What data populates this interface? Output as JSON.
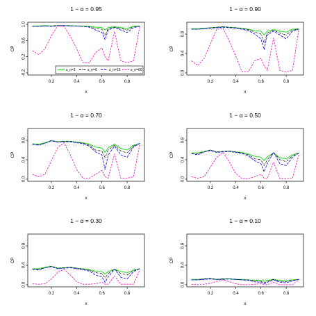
{
  "chart_data": [
    {
      "type": "line",
      "title": "1 − α = 0.95",
      "xlabel": "x",
      "ylabel": "CP",
      "xlim": [
        0.05,
        0.9
      ],
      "ylim": [
        -0.2,
        1.0
      ],
      "xticks": [
        "0.2",
        "0.4",
        "0.6",
        "0.8"
      ],
      "yticks": [
        "-0.2",
        "0.2",
        "0.6",
        "1.0"
      ],
      "reference_line": 0.95,
      "legend": {
        "position": "bottom-right",
        "entries": [
          "s_n=1",
          "s_n=6",
          "s_n=15",
          "s_n=60"
        ]
      },
      "x": [
        0.05,
        0.1,
        0.15,
        0.2,
        0.25,
        0.3,
        0.35,
        0.4,
        0.45,
        0.5,
        0.55,
        0.6,
        0.625,
        0.65,
        0.7,
        0.75,
        0.8,
        0.85,
        0.9
      ],
      "series": [
        {
          "name": "s_n=1",
          "values": [
            0.96,
            0.96,
            0.97,
            0.96,
            0.97,
            0.97,
            0.97,
            0.96,
            0.96,
            0.95,
            0.93,
            0.92,
            0.86,
            0.92,
            0.94,
            0.92,
            0.9,
            0.95,
            0.96
          ]
        },
        {
          "name": "s_n=6",
          "values": [
            0.95,
            0.95,
            0.96,
            0.96,
            0.97,
            0.97,
            0.96,
            0.96,
            0.95,
            0.94,
            0.9,
            0.88,
            0.72,
            0.9,
            0.93,
            0.9,
            0.86,
            0.94,
            0.95
          ]
        },
        {
          "name": "s_n=15",
          "values": [
            0.95,
            0.95,
            0.96,
            0.95,
            0.96,
            0.97,
            0.96,
            0.96,
            0.95,
            0.93,
            0.86,
            0.8,
            0.62,
            0.86,
            0.92,
            0.86,
            0.8,
            0.92,
            0.95
          ]
        },
        {
          "name": "s_n=60",
          "values": [
            0.35,
            0.25,
            0.4,
            0.72,
            0.96,
            0.95,
            0.7,
            0.4,
            0.05,
            0.05,
            0.3,
            0.42,
            0.2,
            0.1,
            0.82,
            0.1,
            0.05,
            0.1,
            0.95
          ]
        }
      ]
    },
    {
      "type": "line",
      "title": "1 − α = 0.90",
      "xlabel": "x",
      "ylabel": "CP",
      "xlim": [
        0.05,
        0.9
      ],
      "ylim": [
        0.0,
        1.0
      ],
      "xticks": [
        "0.2",
        "0.4",
        "0.6",
        "0.8"
      ],
      "yticks": [
        "0.0",
        "0.4",
        "0.8"
      ],
      "reference_line": 0.9,
      "x": [
        0.05,
        0.1,
        0.15,
        0.2,
        0.25,
        0.3,
        0.35,
        0.4,
        0.45,
        0.5,
        0.55,
        0.6,
        0.625,
        0.65,
        0.7,
        0.75,
        0.8,
        0.85,
        0.9
      ],
      "series": [
        {
          "name": "s_n=1",
          "values": [
            0.91,
            0.91,
            0.92,
            0.93,
            0.94,
            0.95,
            0.94,
            0.93,
            0.92,
            0.9,
            0.87,
            0.86,
            0.78,
            0.86,
            0.89,
            0.86,
            0.84,
            0.9,
            0.91
          ]
        },
        {
          "name": "s_n=6",
          "values": [
            0.9,
            0.9,
            0.91,
            0.93,
            0.94,
            0.95,
            0.94,
            0.93,
            0.91,
            0.89,
            0.84,
            0.8,
            0.62,
            0.82,
            0.88,
            0.82,
            0.78,
            0.88,
            0.9
          ]
        },
        {
          "name": "s_n=15",
          "values": [
            0.9,
            0.9,
            0.91,
            0.92,
            0.93,
            0.94,
            0.93,
            0.92,
            0.9,
            0.87,
            0.8,
            0.7,
            0.48,
            0.78,
            0.86,
            0.78,
            0.7,
            0.86,
            0.9
          ]
        },
        {
          "name": "s_n=60",
          "values": [
            0.25,
            0.15,
            0.3,
            0.6,
            0.9,
            0.92,
            0.65,
            0.35,
            0.02,
            0.02,
            0.25,
            0.3,
            0.15,
            0.05,
            0.72,
            0.05,
            0.02,
            0.05,
            0.9
          ]
        }
      ]
    },
    {
      "type": "line",
      "title": "1 − α = 0.70",
      "xlabel": "x",
      "ylabel": "CP",
      "xlim": [
        0.05,
        0.9
      ],
      "ylim": [
        0.0,
        1.0
      ],
      "xticks": [
        "0.2",
        "0.4",
        "0.6",
        "0.8"
      ],
      "yticks": [
        "0.0",
        "0.4",
        "0.8"
      ],
      "reference_line": 0.7,
      "x": [
        0.05,
        0.1,
        0.15,
        0.2,
        0.25,
        0.3,
        0.35,
        0.4,
        0.45,
        0.5,
        0.55,
        0.6,
        0.625,
        0.65,
        0.7,
        0.75,
        0.8,
        0.85,
        0.9
      ],
      "series": [
        {
          "name": "s_n=1",
          "values": [
            0.73,
            0.72,
            0.75,
            0.79,
            0.77,
            0.78,
            0.78,
            0.76,
            0.75,
            0.72,
            0.66,
            0.64,
            0.55,
            0.65,
            0.72,
            0.63,
            0.6,
            0.7,
            0.73
          ]
        },
        {
          "name": "s_n=6",
          "values": [
            0.72,
            0.71,
            0.74,
            0.8,
            0.77,
            0.78,
            0.78,
            0.76,
            0.74,
            0.7,
            0.6,
            0.58,
            0.44,
            0.6,
            0.7,
            0.58,
            0.54,
            0.68,
            0.74
          ]
        },
        {
          "name": "s_n=15",
          "values": [
            0.72,
            0.7,
            0.74,
            0.79,
            0.76,
            0.77,
            0.77,
            0.75,
            0.73,
            0.68,
            0.56,
            0.5,
            0.2,
            0.5,
            0.68,
            0.5,
            0.45,
            0.66,
            0.74
          ]
        },
        {
          "name": "s_n=60",
          "values": [
            0.1,
            0.05,
            0.1,
            0.38,
            0.65,
            0.75,
            0.5,
            0.2,
            0.02,
            0.02,
            0.1,
            0.18,
            0.05,
            0.02,
            0.52,
            0.02,
            0.02,
            0.05,
            0.72
          ]
        }
      ]
    },
    {
      "type": "line",
      "title": "1 − α = 0.50",
      "xlabel": "x",
      "ylabel": "CP",
      "xlim": [
        0.05,
        0.9
      ],
      "ylim": [
        0.0,
        1.0
      ],
      "xticks": [
        "0.2",
        "0.4",
        "0.6",
        "0.8"
      ],
      "yticks": [
        "0.0",
        "0.4",
        "0.8"
      ],
      "reference_line": 0.5,
      "x": [
        0.05,
        0.1,
        0.15,
        0.2,
        0.25,
        0.3,
        0.35,
        0.4,
        0.45,
        0.5,
        0.55,
        0.6,
        0.625,
        0.65,
        0.7,
        0.75,
        0.8,
        0.85,
        0.9
      ],
      "series": [
        {
          "name": "s_n=1",
          "values": [
            0.54,
            0.54,
            0.57,
            0.6,
            0.56,
            0.57,
            0.58,
            0.56,
            0.55,
            0.52,
            0.47,
            0.45,
            0.38,
            0.46,
            0.54,
            0.44,
            0.42,
            0.5,
            0.54
          ]
        },
        {
          "name": "s_n=6",
          "values": [
            0.53,
            0.53,
            0.56,
            0.6,
            0.56,
            0.57,
            0.58,
            0.56,
            0.54,
            0.5,
            0.42,
            0.4,
            0.28,
            0.4,
            0.55,
            0.4,
            0.36,
            0.48,
            0.54
          ]
        },
        {
          "name": "s_n=15",
          "values": [
            0.53,
            0.5,
            0.56,
            0.59,
            0.55,
            0.56,
            0.57,
            0.55,
            0.53,
            0.48,
            0.38,
            0.32,
            0.15,
            0.32,
            0.55,
            0.32,
            0.28,
            0.45,
            0.54
          ]
        },
        {
          "name": "s_n=60",
          "values": [
            0.05,
            0.02,
            0.05,
            0.25,
            0.45,
            0.55,
            0.35,
            0.12,
            0.01,
            0.01,
            0.05,
            0.1,
            0.02,
            0.01,
            0.35,
            0.01,
            0.01,
            0.02,
            0.5
          ]
        }
      ]
    },
    {
      "type": "line",
      "title": "1 − α = 0.30",
      "xlabel": "x",
      "ylabel": "CP",
      "xlim": [
        0.05,
        0.9
      ],
      "ylim": [
        0.0,
        1.0
      ],
      "xticks": [
        "0.2",
        "0.4",
        "0.6",
        "0.8"
      ],
      "yticks": [
        "0.0",
        "0.4",
        "0.8"
      ],
      "reference_line": 0.3,
      "x": [
        0.05,
        0.1,
        0.15,
        0.2,
        0.25,
        0.3,
        0.35,
        0.4,
        0.45,
        0.5,
        0.55,
        0.6,
        0.625,
        0.65,
        0.7,
        0.75,
        0.8,
        0.85,
        0.9
      ],
      "series": [
        {
          "name": "s_n=1",
          "values": [
            0.33,
            0.33,
            0.36,
            0.38,
            0.34,
            0.35,
            0.36,
            0.34,
            0.33,
            0.31,
            0.28,
            0.27,
            0.22,
            0.27,
            0.32,
            0.27,
            0.25,
            0.3,
            0.33
          ]
        },
        {
          "name": "s_n=6",
          "values": [
            0.32,
            0.32,
            0.35,
            0.38,
            0.34,
            0.35,
            0.36,
            0.34,
            0.32,
            0.3,
            0.25,
            0.23,
            0.14,
            0.23,
            0.32,
            0.23,
            0.2,
            0.29,
            0.33
          ]
        },
        {
          "name": "s_n=15",
          "values": [
            0.32,
            0.3,
            0.35,
            0.37,
            0.33,
            0.34,
            0.35,
            0.33,
            0.31,
            0.28,
            0.2,
            0.16,
            0.05,
            0.16,
            0.32,
            0.15,
            0.12,
            0.27,
            0.33
          ]
        },
        {
          "name": "s_n=60",
          "values": [
            0.02,
            0.01,
            0.02,
            0.12,
            0.25,
            0.32,
            0.2,
            0.06,
            0.01,
            0.01,
            0.02,
            0.05,
            0.01,
            0.01,
            0.18,
            0.01,
            0.01,
            0.01,
            0.3
          ]
        }
      ]
    },
    {
      "type": "line",
      "title": "1 − α = 0.10",
      "xlabel": "x",
      "ylabel": "CP",
      "xlim": [
        0.05,
        0.9
      ],
      "ylim": [
        0.0,
        1.0
      ],
      "xticks": [
        "0.2",
        "0.4",
        "0.6",
        "0.8"
      ],
      "yticks": [
        "0.0",
        "0.4",
        "0.8"
      ],
      "reference_line": 0.1,
      "x": [
        0.05,
        0.1,
        0.15,
        0.2,
        0.25,
        0.3,
        0.35,
        0.4,
        0.45,
        0.5,
        0.55,
        0.6,
        0.625,
        0.65,
        0.7,
        0.75,
        0.8,
        0.85,
        0.9
      ],
      "series": [
        {
          "name": "s_n=1",
          "values": [
            0.11,
            0.11,
            0.12,
            0.13,
            0.11,
            0.12,
            0.12,
            0.11,
            0.11,
            0.1,
            0.09,
            0.09,
            0.07,
            0.09,
            0.11,
            0.09,
            0.08,
            0.1,
            0.11
          ]
        },
        {
          "name": "s_n=6",
          "values": [
            0.1,
            0.1,
            0.12,
            0.13,
            0.11,
            0.12,
            0.12,
            0.11,
            0.1,
            0.1,
            0.08,
            0.07,
            0.04,
            0.07,
            0.11,
            0.07,
            0.06,
            0.09,
            0.11
          ]
        },
        {
          "name": "s_n=15",
          "values": [
            0.1,
            0.1,
            0.11,
            0.12,
            0.11,
            0.11,
            0.12,
            0.11,
            0.1,
            0.09,
            0.06,
            0.05,
            0.02,
            0.05,
            0.1,
            0.05,
            0.04,
            0.08,
            0.11
          ]
        },
        {
          "name": "s_n=60",
          "values": [
            0.01,
            0.0,
            0.01,
            0.03,
            0.07,
            0.1,
            0.06,
            0.02,
            0.0,
            0.0,
            0.01,
            0.02,
            0.0,
            0.0,
            0.05,
            0.0,
            0.0,
            0.0,
            0.1
          ]
        }
      ]
    }
  ],
  "colors": {
    "s_n=1": "#33dd33",
    "s_n=6": "#111111",
    "s_n=15": "#1a1aee",
    "s_n=60": "#ee22cc",
    "reference": "#999999"
  }
}
